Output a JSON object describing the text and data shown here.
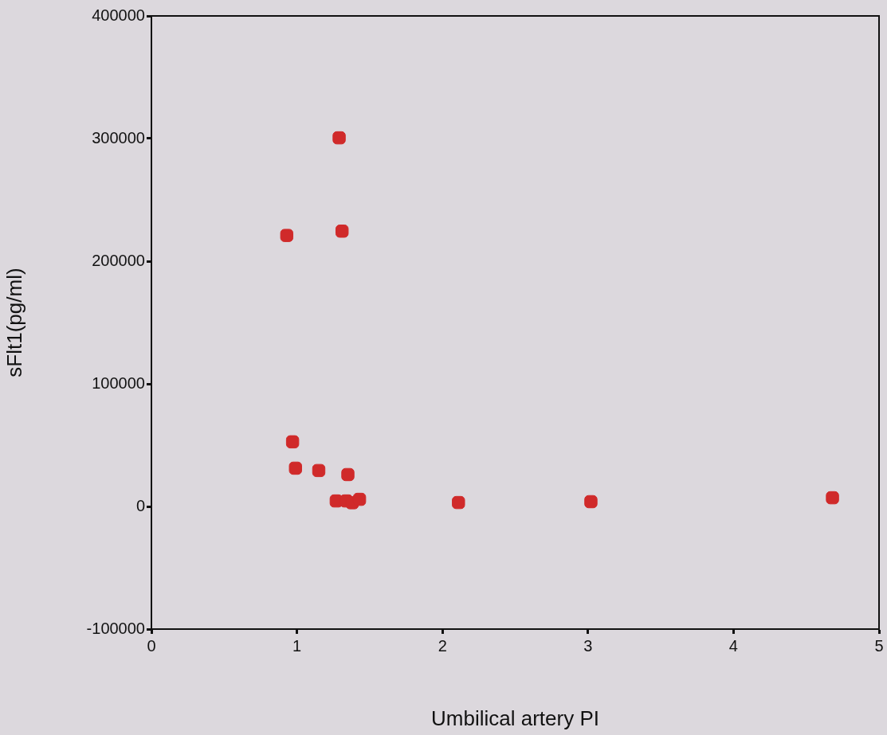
{
  "chart_data": {
    "type": "scatter",
    "xlabel": "Umbilical artery PI",
    "ylabel": "sFlt1(pg/ml)",
    "x": [
      0.93,
      1.29,
      1.31,
      0.97,
      0.99,
      1.15,
      1.35,
      1.27,
      1.34,
      1.38,
      1.43,
      2.11,
      3.02,
      4.68
    ],
    "series": [
      {
        "color": "#d02a2a",
        "values": [
          221000,
          300600,
          224500,
          52700,
          31200,
          29300,
          26000,
          4500,
          4500,
          3000,
          5800,
          3200,
          3900,
          7100
        ]
      }
    ],
    "xlim": [
      0,
      5
    ],
    "xticks": [
      0,
      1,
      2,
      3,
      4,
      5
    ],
    "ylim": [
      -100000,
      400000
    ],
    "yticks": [
      -100000,
      0,
      100000,
      200000,
      300000,
      400000
    ],
    "grid": false,
    "legend": false,
    "marker": "square"
  }
}
